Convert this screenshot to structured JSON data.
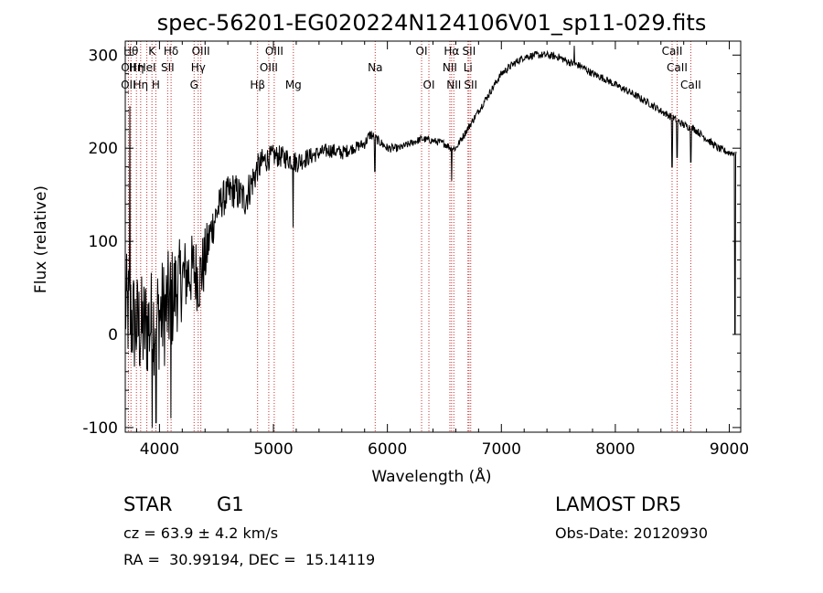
{
  "chart_data": {
    "type": "line",
    "title": "spec-56201-EG020224N124106V01_sp11-029.fits",
    "xlabel": "Wavelength (Å)",
    "ylabel": "Flux (relative)",
    "xlim": [
      3700,
      9100
    ],
    "ylim": [
      -105,
      315
    ],
    "xticks": [
      4000,
      5000,
      6000,
      7000,
      8000,
      9000
    ],
    "yticks": [
      -100,
      0,
      100,
      200,
      300
    ],
    "grid": false,
    "series": [
      {
        "anchors_x": [
          3700,
          3740,
          3790,
          3850,
          3900,
          3950,
          4000,
          4050,
          4100,
          4150,
          4200,
          4250,
          4300,
          4350,
          4400,
          4450,
          4500,
          4550,
          4600,
          4650,
          4700,
          4750,
          4800,
          4850,
          4900,
          5000,
          5100,
          5200,
          5300,
          5400,
          5500,
          5600,
          5700,
          5800,
          5850,
          5900,
          5950,
          6000,
          6100,
          6200,
          6300,
          6400,
          6500,
          6560,
          6600,
          6700,
          6800,
          6900,
          7000,
          7100,
          7200,
          7300,
          7400,
          7500,
          7600,
          7700,
          7800,
          7900,
          8000,
          8100,
          8200,
          8300,
          8400,
          8500,
          8600,
          8700,
          8800,
          8900,
          9000
        ],
        "anchors_y": [
          30,
          20,
          10,
          5,
          10,
          15,
          20,
          25,
          35,
          50,
          60,
          65,
          70,
          60,
          80,
          110,
          130,
          145,
          150,
          155,
          150,
          145,
          160,
          175,
          185,
          192,
          190,
          185,
          190,
          195,
          198,
          195,
          200,
          205,
          215,
          210,
          205,
          200,
          200,
          205,
          210,
          208,
          205,
          200,
          200,
          220,
          240,
          260,
          280,
          290,
          298,
          300,
          300,
          298,
          292,
          288,
          280,
          275,
          268,
          262,
          255,
          248,
          240,
          233,
          225,
          220,
          210,
          200,
          195
        ],
        "noise_amplitude": [
          60,
          60,
          60,
          60,
          60,
          60,
          60,
          60,
          60,
          50,
          45,
          40,
          40,
          40,
          35,
          25,
          20,
          20,
          20,
          20,
          20,
          20,
          20,
          18,
          15,
          12,
          12,
          12,
          10,
          8,
          8,
          8,
          6,
          6,
          6,
          5,
          5,
          5,
          4,
          4,
          4,
          4,
          4,
          4,
          4,
          4,
          4,
          4,
          4,
          4,
          4,
          4,
          4,
          4,
          4,
          4,
          4,
          4,
          4,
          4,
          4,
          4,
          4,
          4,
          4,
          4,
          4,
          4,
          4
        ],
        "absorption_features": [
          {
            "x": 3935,
            "y": -100
          },
          {
            "x": 3970,
            "y": -95
          },
          {
            "x": 4100,
            "y": -90
          },
          {
            "x": 4861,
            "y": 165
          },
          {
            "x": 5172,
            "y": 115
          },
          {
            "x": 5890,
            "y": 175
          },
          {
            "x": 6563,
            "y": 165
          },
          {
            "x": 8498,
            "y": 180
          },
          {
            "x": 8542,
            "y": 190
          },
          {
            "x": 8662,
            "y": 185
          },
          {
            "x": 9050,
            "y": 0
          }
        ],
        "emission_features": [
          {
            "x": 3740,
            "y": 245
          },
          {
            "x": 7640,
            "y": 310
          }
        ]
      }
    ],
    "spectral_lines": [
      {
        "x": 3750,
        "row": 1,
        "label": "Hθ"
      },
      {
        "x": 3728,
        "row": 2,
        "label": "OII"
      },
      {
        "x": 3727,
        "row": 3,
        "label": "OII"
      },
      {
        "x": 3798,
        "row": 2,
        "label": "Hη"
      },
      {
        "x": 3835,
        "row": 3,
        "label": "Hη"
      },
      {
        "x": 3889,
        "row": 2,
        "label": "HeI"
      },
      {
        "x": 3934,
        "row": 1,
        "label": "K"
      },
      {
        "x": 3968,
        "row": 3,
        "label": "H"
      },
      {
        "x": 4102,
        "row": 1,
        "label": "Hδ"
      },
      {
        "x": 4072,
        "row": 2,
        "label": "SII"
      },
      {
        "x": 4363,
        "row": 1,
        "label": "OIII"
      },
      {
        "x": 4340,
        "row": 2,
        "label": "Hγ"
      },
      {
        "x": 4304,
        "row": 3,
        "label": "G"
      },
      {
        "x": 4861,
        "row": 3,
        "label": "Hβ"
      },
      {
        "x": 5007,
        "row": 1,
        "label": "OIII"
      },
      {
        "x": 4959,
        "row": 2,
        "label": "OIII"
      },
      {
        "x": 5175,
        "row": 3,
        "label": "Mg"
      },
      {
        "x": 5893,
        "row": 2,
        "label": "Na"
      },
      {
        "x": 6300,
        "row": 1,
        "label": "OI"
      },
      {
        "x": 6364,
        "row": 3,
        "label": "OI"
      },
      {
        "x": 6563,
        "row": 1,
        "label": "Hα"
      },
      {
        "x": 6548,
        "row": 2,
        "label": "NII"
      },
      {
        "x": 6583,
        "row": 3,
        "label": "NII"
      },
      {
        "x": 6716,
        "row": 1,
        "label": "SII"
      },
      {
        "x": 6707,
        "row": 2,
        "label": "Li"
      },
      {
        "x": 6731,
        "row": 3,
        "label": "SII"
      },
      {
        "x": 8498,
        "row": 1,
        "label": "CaII"
      },
      {
        "x": 8542,
        "row": 2,
        "label": "CaII"
      },
      {
        "x": 8662,
        "row": 3,
        "label": "CaII"
      }
    ]
  },
  "footer": {
    "class_label": "STAR",
    "subclass_label": "G1",
    "velocity": "cz = 63.9 ± 4.2 km/s",
    "coords": "RA =  30.99194, DEC =  15.14119",
    "survey": "LAMOST DR5",
    "obs_date": "Obs-Date: 20120930"
  }
}
